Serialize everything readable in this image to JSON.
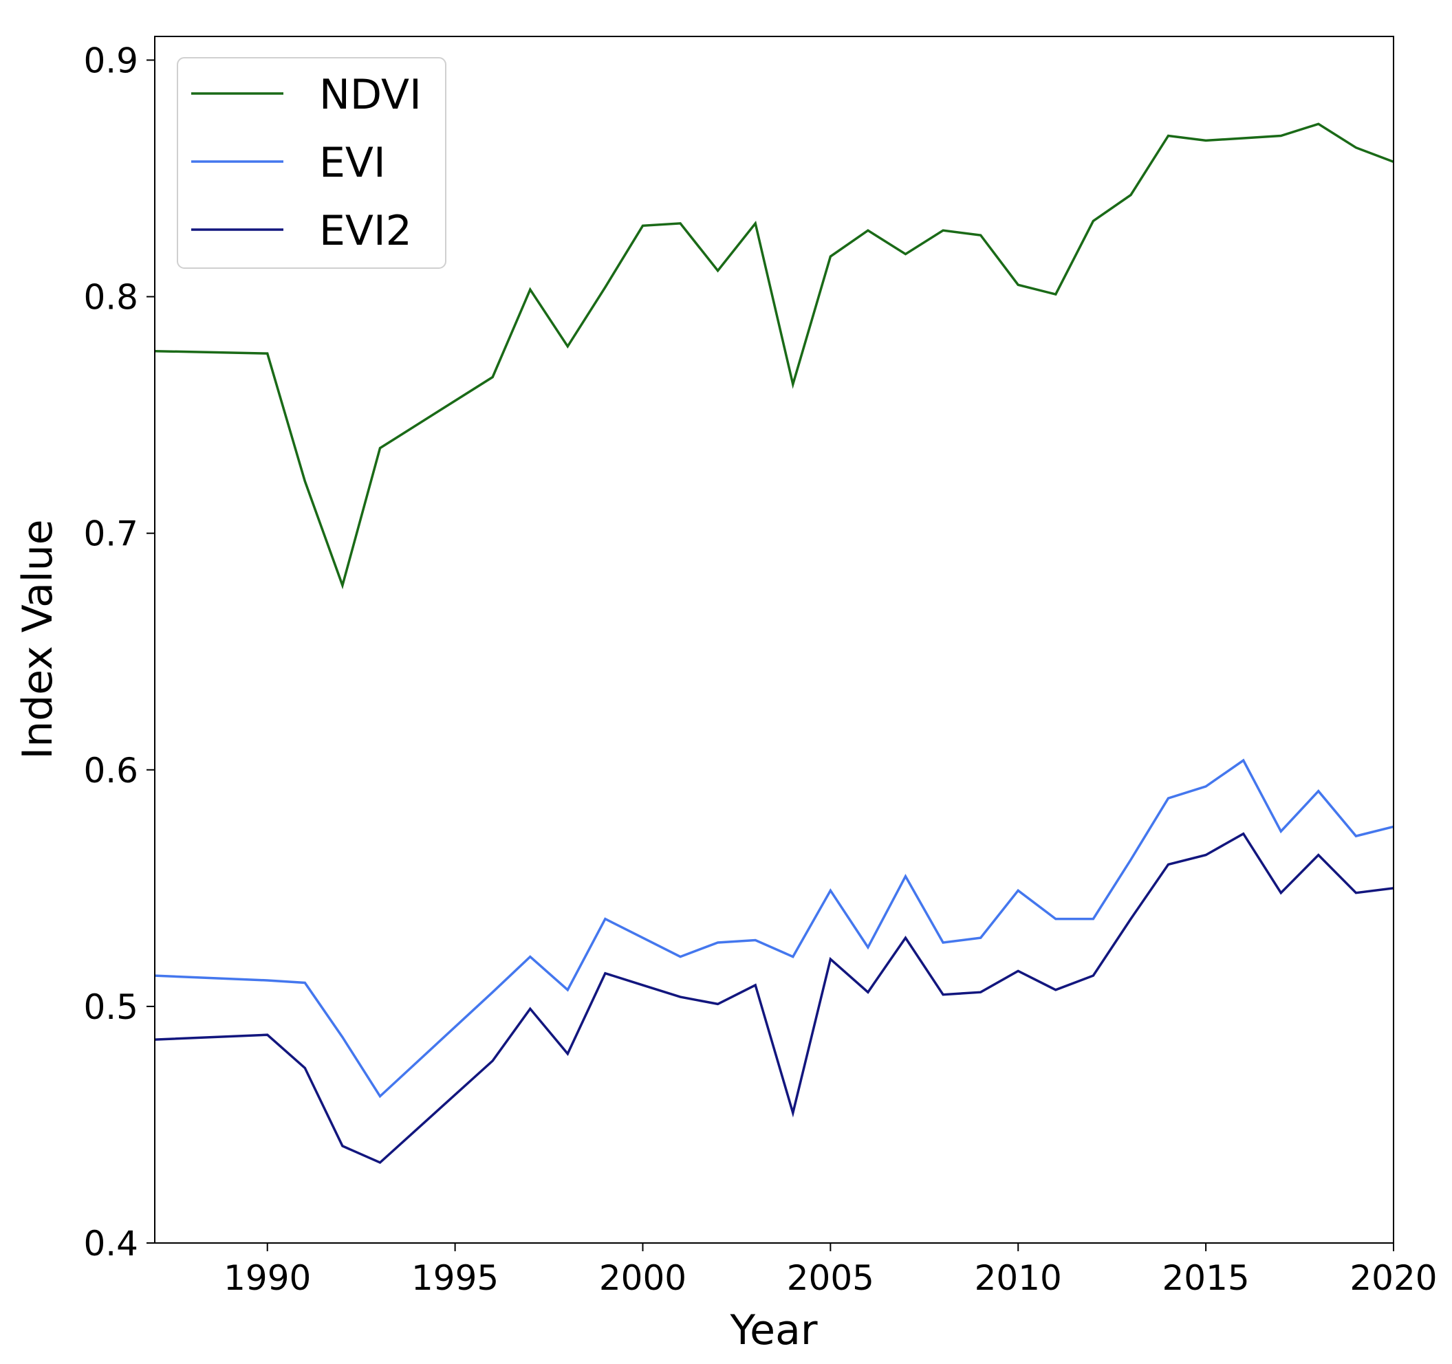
{
  "chart_data": {
    "type": "line",
    "title": "",
    "xlabel": "Year",
    "ylabel": "Index Value",
    "xlim": [
      1987,
      2020
    ],
    "ylim": [
      0.4,
      0.91
    ],
    "xticks": [
      1990,
      1995,
      2000,
      2005,
      2010,
      2015,
      2020
    ],
    "yticks": [
      0.4,
      0.5,
      0.6,
      0.7,
      0.8,
      0.9
    ],
    "ytick_labels": [
      "0.4",
      "0.5",
      "0.6",
      "0.7",
      "0.8",
      "0.9"
    ],
    "grid": false,
    "legend_position": "upper-left",
    "x": [
      1987,
      1990,
      1991,
      1992,
      1993,
      1996,
      1997,
      1998,
      1999,
      2000,
      2001,
      2002,
      2003,
      2004,
      2005,
      2006,
      2007,
      2008,
      2009,
      2010,
      2011,
      2012,
      2013,
      2014,
      2015,
      2016,
      2017,
      2018,
      2019,
      2020
    ],
    "series": [
      {
        "name": "NDVI",
        "color": "#1a6a17",
        "values": [
          0.777,
          0.776,
          0.722,
          0.678,
          0.736,
          0.766,
          0.803,
          0.779,
          0.804,
          0.83,
          0.831,
          0.811,
          0.831,
          0.763,
          0.817,
          0.828,
          0.818,
          0.828,
          0.826,
          0.805,
          0.801,
          0.832,
          0.843,
          0.868,
          0.866,
          0.867,
          0.868,
          0.873,
          0.863,
          0.857
        ]
      },
      {
        "name": "EVI",
        "color": "#4477ee",
        "values": [
          0.513,
          0.511,
          0.51,
          0.487,
          0.462,
          0.506,
          0.521,
          0.507,
          0.537,
          0.529,
          0.521,
          0.527,
          0.528,
          0.521,
          0.549,
          0.525,
          0.555,
          0.527,
          0.529,
          0.549,
          0.537,
          0.537,
          0.562,
          0.588,
          0.593,
          0.604,
          0.574,
          0.591,
          0.572,
          0.576
        ]
      },
      {
        "name": "EVI2",
        "color": "#12167e",
        "values": [
          0.486,
          0.488,
          0.474,
          0.441,
          0.434,
          0.477,
          0.499,
          0.48,
          0.514,
          0.509,
          0.504,
          0.501,
          0.509,
          0.455,
          0.52,
          0.506,
          0.529,
          0.505,
          0.506,
          0.515,
          0.507,
          0.513,
          0.537,
          0.56,
          0.564,
          0.573,
          0.548,
          0.564,
          0.548,
          0.55
        ]
      }
    ]
  }
}
